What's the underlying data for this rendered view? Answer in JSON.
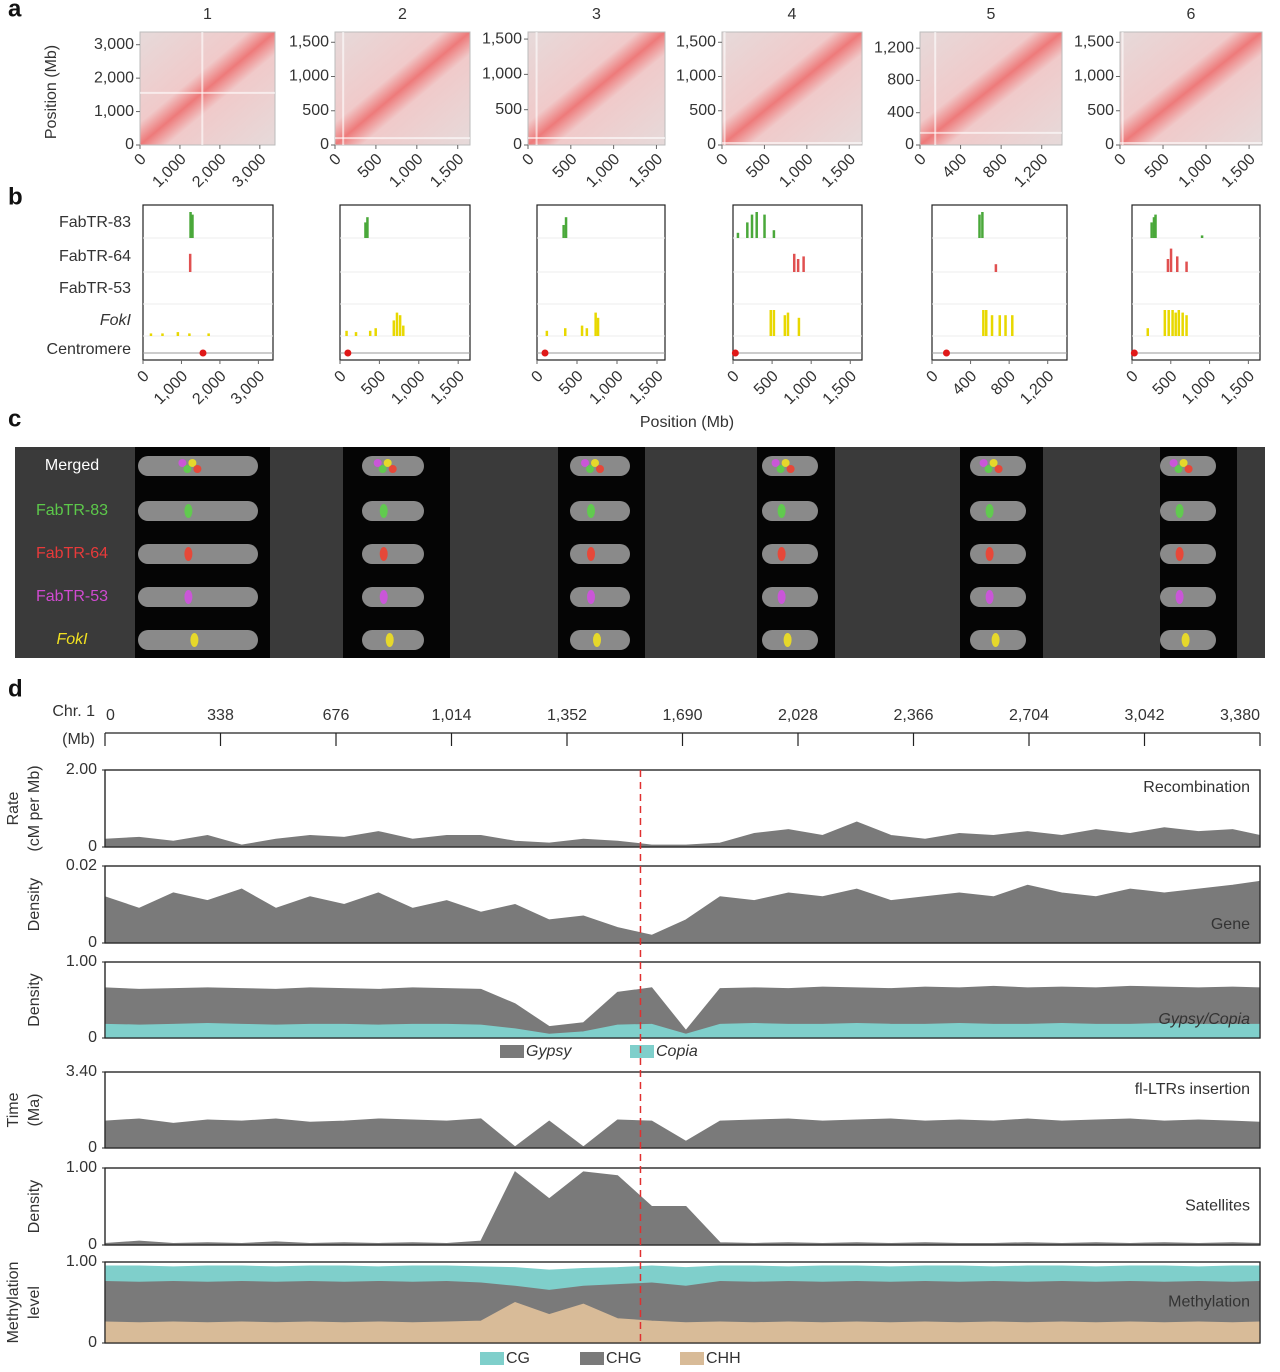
{
  "panel_labels": [
    "a",
    "b",
    "c",
    "d"
  ],
  "chromosomes": [
    {
      "name": "1",
      "lim": [
        0,
        3380
      ],
      "ticks": [
        0,
        {
          "value": 1000,
          "label": "1,000"
        },
        {
          "value": 2000,
          "label": "2,000"
        },
        {
          "value": 3000,
          "label": "3,000"
        }
      ]
    },
    {
      "name": "2",
      "lim": [
        0,
        1650
      ],
      "ticks": [
        0,
        500,
        {
          "value": 1000,
          "label": "1,000"
        },
        {
          "value": 1500,
          "label": "1,500"
        }
      ]
    },
    {
      "name": "3",
      "lim": [
        0,
        1600
      ],
      "ticks": [
        0,
        500,
        {
          "value": 1000,
          "label": "1,000"
        },
        {
          "value": 1500,
          "label": "1,500"
        }
      ]
    },
    {
      "name": "4",
      "lim": [
        0,
        1650
      ],
      "ticks": [
        0,
        500,
        {
          "value": 1000,
          "label": "1,000"
        },
        {
          "value": 1500,
          "label": "1,500"
        }
      ]
    },
    {
      "name": "5",
      "lim": [
        0,
        1400
      ],
      "ticks": [
        0,
        400,
        800,
        {
          "value": 1200,
          "label": "1,200"
        }
      ]
    },
    {
      "name": "6",
      "lim": [
        0,
        1650
      ],
      "ticks": [
        0,
        500,
        {
          "value": 1000,
          "label": "1,000"
        },
        {
          "value": 1500,
          "label": "1,500"
        }
      ]
    }
  ],
  "a": {
    "ylabel": "Position (Mb)"
  },
  "b": {
    "track_names": [
      "FabTR-83",
      "FabTR-64",
      "FabTR-53",
      "FokI",
      "Centromere"
    ],
    "track_colors": [
      "#4aa83a",
      "#e05050",
      "#c050c0",
      "#e8d800"
    ],
    "centromere_color": "#e01818",
    "xlabel": "Position (Mb)",
    "chromosomes": [
      {
        "peaks": [
          {
            "x": [
              1230,
              1280
            ],
            "values": [
              1,
              0.9
            ]
          },
          {
            "x": [
              1220
            ],
            "values": [
              0.7
            ]
          },
          {
            "x": [],
            "values": []
          },
          {
            "x": [
              200,
              500,
              900,
              1200,
              1700
            ],
            "values": [
              0.1,
              0.1,
              0.15,
              0.1,
              0.1
            ]
          }
        ],
        "centromere": 1560
      },
      {
        "peaks": [
          {
            "x": [
              320,
              345
            ],
            "values": [
              0.6,
              0.8
            ]
          },
          {
            "x": [],
            "values": []
          },
          {
            "x": [],
            "values": []
          },
          {
            "x": [
              80,
              200,
              380,
              450,
              680,
              720,
              760,
              800
            ],
            "values": [
              0.2,
              0.15,
              0.2,
              0.3,
              0.6,
              0.9,
              0.8,
              0.4
            ]
          }
        ],
        "centromere": 100
      },
      {
        "peaks": [
          {
            "x": [
              330,
              360
            ],
            "values": [
              0.5,
              0.8
            ]
          },
          {
            "x": [],
            "values": []
          },
          {
            "x": [],
            "values": []
          },
          {
            "x": [
              120,
              350,
              560,
              620,
              730,
              760
            ],
            "values": [
              0.2,
              0.3,
              0.4,
              0.3,
              0.9,
              0.7
            ]
          }
        ],
        "centromere": 100
      },
      {
        "peaks": [
          {
            "x": [
              60,
              180,
              240,
              300,
              400,
              520
            ],
            "values": [
              0.2,
              0.6,
              0.9,
              1,
              0.9,
              0.3
            ]
          },
          {
            "x": [
              780,
              830,
              900
            ],
            "values": [
              0.7,
              0.5,
              0.6
            ]
          },
          {
            "x": [],
            "values": []
          },
          {
            "x": [
              480,
              520,
              660,
              700,
              840
            ],
            "values": [
              1,
              1,
              0.8,
              0.9,
              0.7
            ]
          }
        ],
        "centromere": 30
      },
      {
        "peaks": [
          {
            "x": [
              490,
              520
            ],
            "values": [
              0.9,
              1
            ]
          },
          {
            "x": [
              660
            ],
            "values": [
              0.3
            ]
          },
          {
            "x": [],
            "values": []
          },
          {
            "x": [
              530,
              560,
              620,
              700,
              760,
              830
            ],
            "values": [
              1,
              1,
              0.8,
              0.8,
              0.8,
              0.8
            ]
          }
        ],
        "centromere": 150
      },
      {
        "peaks": [
          {
            "x": [
              250,
              280,
              300,
              900
            ],
            "values": [
              0.6,
              0.8,
              0.9,
              0.1
            ]
          },
          {
            "x": [
              460,
              500,
              580,
              700
            ],
            "values": [
              0.5,
              0.9,
              0.6,
              0.4
            ]
          },
          {
            "x": [],
            "values": []
          },
          {
            "x": [
              200,
              420,
              470,
              520,
              560,
              600,
              650,
              700
            ],
            "values": [
              0.3,
              1,
              1,
              1,
              0.9,
              1,
              0.9,
              0.8
            ]
          }
        ],
        "centromere": 30
      }
    ]
  },
  "c": {
    "labels": [
      "Merged",
      "FabTR-83",
      "FabTR-64",
      "FabTR-53",
      "FokI"
    ],
    "label_colors": [
      "#ffffff",
      "#5cc84a",
      "#e83a3a",
      "#d04ad0",
      "#f0e020"
    ]
  },
  "d": {
    "chromosome": "Chr. 1",
    "unit": "(Mb)",
    "xlim": [
      0,
      3380
    ],
    "xticks": [
      0,
      338,
      676,
      {
        "value": 1014,
        "label": "1,014"
      },
      {
        "value": 1352,
        "label": "1,352"
      },
      {
        "value": 1690,
        "label": "1,690"
      },
      {
        "value": 2028,
        "label": "2,028"
      },
      {
        "value": 2366,
        "label": "2,366"
      },
      {
        "value": 2704,
        "label": "2,704"
      },
      {
        "value": 3042,
        "label": "3,042"
      },
      {
        "value": 3380,
        "label": "3,380"
      }
    ],
    "centromere": 1567,
    "x": [
      0,
      100,
      200,
      300,
      400,
      500,
      600,
      700,
      800,
      900,
      1000,
      1100,
      1200,
      1300,
      1400,
      1500,
      1600,
      1700,
      1800,
      1900,
      2000,
      2100,
      2200,
      2300,
      2400,
      2500,
      2600,
      2700,
      2800,
      2900,
      3000,
      3100,
      3200,
      3300,
      3380
    ],
    "tracks": [
      {
        "ylabel": [
          "Rate",
          "(cM per Mb)"
        ],
        "name": "Recombination",
        "label_corner": "top-right",
        "ylim": [
          0,
          2
        ],
        "yticks": [
          0,
          {
            "value": 2,
            "label": "2.00"
          }
        ],
        "series": [
          {
            "color": "#7a7a7a",
            "values": [
              0.2,
              0.25,
              0.15,
              0.3,
              0.05,
              0.2,
              0.3,
              0.25,
              0.4,
              0.2,
              0.3,
              0.3,
              0.15,
              0.1,
              0.2,
              0.15,
              0.05,
              0.05,
              0.1,
              0.35,
              0.45,
              0.3,
              0.65,
              0.3,
              0.2,
              0.35,
              0.3,
              0.4,
              0.3,
              0.45,
              0.35,
              0.5,
              0.4,
              0.45,
              0.3
            ]
          }
        ]
      },
      {
        "ylabel": [
          "Density"
        ],
        "name": "Gene",
        "label_corner": "bottom-right",
        "ylim": [
          0,
          0.02
        ],
        "yticks": [
          0,
          0.02
        ],
        "series": [
          {
            "color": "#7a7a7a",
            "values": [
              0.012,
              0.009,
              0.013,
              0.011,
              0.014,
              0.009,
              0.012,
              0.01,
              0.013,
              0.009,
              0.011,
              0.008,
              0.01,
              0.006,
              0.007,
              0.004,
              0.002,
              0.006,
              0.012,
              0.011,
              0.013,
              0.012,
              0.014,
              0.011,
              0.012,
              0.013,
              0.012,
              0.015,
              0.013,
              0.012,
              0.014,
              0.013,
              0.014,
              0.015,
              0.016
            ]
          }
        ]
      },
      {
        "ylabel": [
          "Density"
        ],
        "name": "Gypsy/Copia",
        "label_corner": "bottom-right",
        "italic": true,
        "ylim": [
          0,
          1
        ],
        "yticks": [
          0,
          {
            "value": 1,
            "label": "1.00"
          }
        ],
        "series": [
          {
            "name": "Gypsy",
            "color": "#7a7a7a",
            "values": [
              0.66,
              0.64,
              0.65,
              0.66,
              0.65,
              0.64,
              0.66,
              0.65,
              0.64,
              0.66,
              0.65,
              0.64,
              0.45,
              0.15,
              0.2,
              0.6,
              0.66,
              0.1,
              0.65,
              0.66,
              0.65,
              0.67,
              0.66,
              0.65,
              0.67,
              0.66,
              0.68,
              0.66,
              0.67,
              0.66,
              0.68,
              0.67,
              0.66,
              0.67,
              0.66
            ]
          },
          {
            "name": "Copia",
            "color": "#7fcfcb",
            "values": [
              0.18,
              0.17,
              0.18,
              0.19,
              0.18,
              0.17,
              0.18,
              0.18,
              0.17,
              0.18,
              0.18,
              0.17,
              0.12,
              0.05,
              0.08,
              0.17,
              0.18,
              0.05,
              0.18,
              0.19,
              0.18,
              0.18,
              0.19,
              0.18,
              0.18,
              0.19,
              0.18,
              0.18,
              0.19,
              0.18,
              0.18,
              0.19,
              0.18,
              0.18,
              0.18
            ]
          }
        ],
        "legend": true
      },
      {
        "ylabel": [
          "Time",
          "(Ma)"
        ],
        "name": "fl-LTRs insertion",
        "label_corner": "top-right",
        "ylim": [
          0,
          3.4
        ],
        "yticks": [
          0,
          {
            "value": 3.4,
            "label": "3.40"
          }
        ],
        "series": [
          {
            "color": "#7a7a7a",
            "values": [
              1.2,
              1.3,
              1.1,
              1.25,
              1.2,
              1.3,
              1.15,
              1.2,
              1.3,
              1.25,
              1.2,
              1.3,
              0.05,
              1.2,
              0.05,
              1.25,
              1.2,
              0.3,
              1.2,
              1.25,
              1.3,
              1.2,
              1.25,
              1.3,
              1.2,
              1.25,
              1.2,
              1.3,
              1.2,
              1.25,
              1.3,
              1.2,
              1.25,
              1.2,
              1.15
            ]
          }
        ]
      },
      {
        "ylabel": [
          "Density"
        ],
        "name": "Satellites",
        "label_corner": "middle-right",
        "ylim": [
          0,
          1
        ],
        "yticks": [
          0,
          {
            "value": 1,
            "label": "1.00"
          }
        ],
        "series": [
          {
            "color": "#7a7a7a",
            "values": [
              0.02,
              0.05,
              0.02,
              0.03,
              0.02,
              0.04,
              0.02,
              0.03,
              0.02,
              0.03,
              0.02,
              0.05,
              0.95,
              0.6,
              0.95,
              0.9,
              0.5,
              0.5,
              0.03,
              0.02,
              0.03,
              0.02,
              0.03,
              0.02,
              0.03,
              0.02,
              0.02,
              0.03,
              0.02,
              0.03,
              0.02,
              0.03,
              0.02,
              0.03,
              0.02
            ]
          }
        ]
      },
      {
        "ylabel": [
          "Methylation",
          "level"
        ],
        "name": "Methylation",
        "label_corner": "middle-right",
        "ylim": [
          0,
          1
        ],
        "yticks": [
          0,
          {
            "value": 1,
            "label": "1.00"
          }
        ],
        "series": [
          {
            "name": "CG",
            "color": "#7fcfcb",
            "values": [
              0.95,
              0.95,
              0.94,
              0.95,
              0.95,
              0.94,
              0.95,
              0.95,
              0.94,
              0.95,
              0.95,
              0.94,
              0.93,
              0.9,
              0.92,
              0.93,
              0.95,
              0.93,
              0.95,
              0.95,
              0.94,
              0.95,
              0.95,
              0.94,
              0.95,
              0.95,
              0.94,
              0.95,
              0.95,
              0.94,
              0.95,
              0.95,
              0.94,
              0.95,
              0.95
            ]
          },
          {
            "name": "CHG",
            "color": "#7a7a7a",
            "values": [
              0.76,
              0.75,
              0.76,
              0.75,
              0.76,
              0.75,
              0.76,
              0.75,
              0.76,
              0.75,
              0.76,
              0.74,
              0.7,
              0.65,
              0.7,
              0.72,
              0.74,
              0.7,
              0.76,
              0.75,
              0.76,
              0.75,
              0.76,
              0.75,
              0.76,
              0.75,
              0.76,
              0.75,
              0.76,
              0.75,
              0.76,
              0.75,
              0.76,
              0.75,
              0.76
            ]
          },
          {
            "name": "CHH",
            "color": "#d8bb98",
            "values": [
              0.26,
              0.25,
              0.26,
              0.25,
              0.26,
              0.25,
              0.26,
              0.25,
              0.26,
              0.25,
              0.26,
              0.27,
              0.5,
              0.35,
              0.48,
              0.3,
              0.27,
              0.25,
              0.26,
              0.25,
              0.26,
              0.25,
              0.26,
              0.25,
              0.26,
              0.25,
              0.26,
              0.25,
              0.26,
              0.25,
              0.26,
              0.25,
              0.26,
              0.25,
              0.26
            ]
          }
        ],
        "legend": true
      }
    ]
  }
}
